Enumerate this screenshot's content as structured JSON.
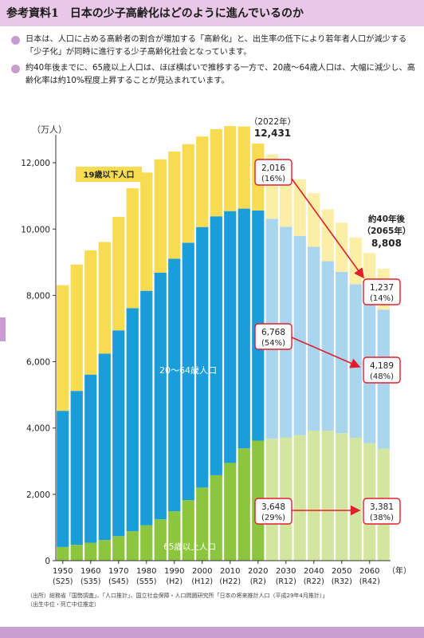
{
  "header": {
    "title": "参考資料1　日本の少子高齢化はどのように進んでいるのか"
  },
  "bullets": [
    "日本は、人口に占める高齢者の割合が増加する「高齢化」と、出生率の低下により若年者人口が減少する「少子化」が同時に進行する少子高齢化社会となっています。",
    "約40年後までに、65歳以上人口は、ほぼ横ばいで推移する一方で、20歳～64歳人口は、大幅に減少し、高齢化率は約10%程度上昇することが見込まれています。"
  ],
  "source": {
    "line1": "（出所）総務省「国勢調査」、「人口推計」、国立社会保障・人口問題研究所「日本の将来推計人口（平成29年4月推計）」",
    "line2": "（出生中位・死亡中位推定）"
  },
  "colors": {
    "young": "#f7dc52",
    "working": "#1b9dd9",
    "elderly": "#8cc63f",
    "young_proj": "#fbeea6",
    "working_proj": "#a9d5ef",
    "elderly_proj": "#d2e6a0",
    "arrow": "#e01e2e",
    "accent": "#c89ed0"
  },
  "chart_data": {
    "type": "bar",
    "stacked": true,
    "ylabel": "（万人）",
    "xunit": "（年）",
    "ylim": [
      0,
      12700
    ],
    "yticks": [
      "0",
      "2,000",
      "4,000",
      "6,000",
      "8,000",
      "10,000",
      "12,000"
    ],
    "x": [
      1950,
      1955,
      1960,
      1965,
      1970,
      1975,
      1980,
      1985,
      1990,
      1995,
      2000,
      2005,
      2010,
      2015,
      2020,
      2025,
      2030,
      2035,
      2040,
      2045,
      2050,
      2055,
      2060,
      2065
    ],
    "projection_start_index": 15,
    "series": [
      {
        "name": "65歳以上人口",
        "values": [
          411,
          479,
          540,
          624,
          739,
          887,
          1065,
          1247,
          1489,
          1826,
          2204,
          2576,
          2948,
          3387,
          3619,
          3677,
          3716,
          3782,
          3921,
          3919,
          3841,
          3704,
          3540,
          3381
        ]
      },
      {
        "name": "20～64歳人口",
        "values": [
          4108,
          4640,
          5072,
          5618,
          6207,
          6729,
          7073,
          7436,
          7617,
          7762,
          7858,
          7810,
          7595,
          7230,
          6942,
          6635,
          6355,
          6011,
          5543,
          5112,
          4868,
          4632,
          4401,
          4189
        ]
      },
      {
        "name": "19歳以下人口",
        "values": [
          3789,
          3813,
          3744,
          3370,
          3424,
          3615,
          3567,
          3421,
          3233,
          2973,
          2730,
          2629,
          2562,
          2477,
          2016,
          1942,
          1830,
          1707,
          1622,
          1566,
          1483,
          1412,
          1339,
          1237
        ]
      }
    ],
    "xticks": [
      {
        "year": "1950",
        "era": "(S25)"
      },
      {
        "year": "1960",
        "era": "(S35)"
      },
      {
        "year": "1970",
        "era": "(S45)"
      },
      {
        "year": "1980",
        "era": "(S55)"
      },
      {
        "year": "1990",
        "era": "(H2)"
      },
      {
        "year": "2000",
        "era": "(H12)"
      },
      {
        "year": "2010",
        "era": "(H22)"
      },
      {
        "year": "2020",
        "era": "(R2)"
      },
      {
        "year": "2030",
        "era": "(R12)"
      },
      {
        "year": "2040",
        "era": "(R22)"
      },
      {
        "year": "2050",
        "era": "(R32)"
      },
      {
        "year": "2060",
        "era": "(R42)"
      }
    ],
    "annotations": {
      "total_2022_year": "（2022年）",
      "total_2022_value": "12,431",
      "total_2065_line1": "約40年後",
      "total_2065_line2": "（2065年）",
      "total_2065_value": "8,808",
      "young_now": [
        "2,016",
        "(16%)"
      ],
      "young_future": [
        "1,237",
        "(14%)"
      ],
      "working_now": [
        "6,768",
        "(54%)"
      ],
      "working_future": [
        "4,189",
        "(48%)"
      ],
      "elderly_now": [
        "3,648",
        "(29%)"
      ],
      "elderly_future": [
        "3,381",
        "(38%)"
      ]
    },
    "series_labels": {
      "young": "19歳以下人口",
      "working": "20～64歳人口",
      "elderly": "65歳以上人口"
    }
  }
}
